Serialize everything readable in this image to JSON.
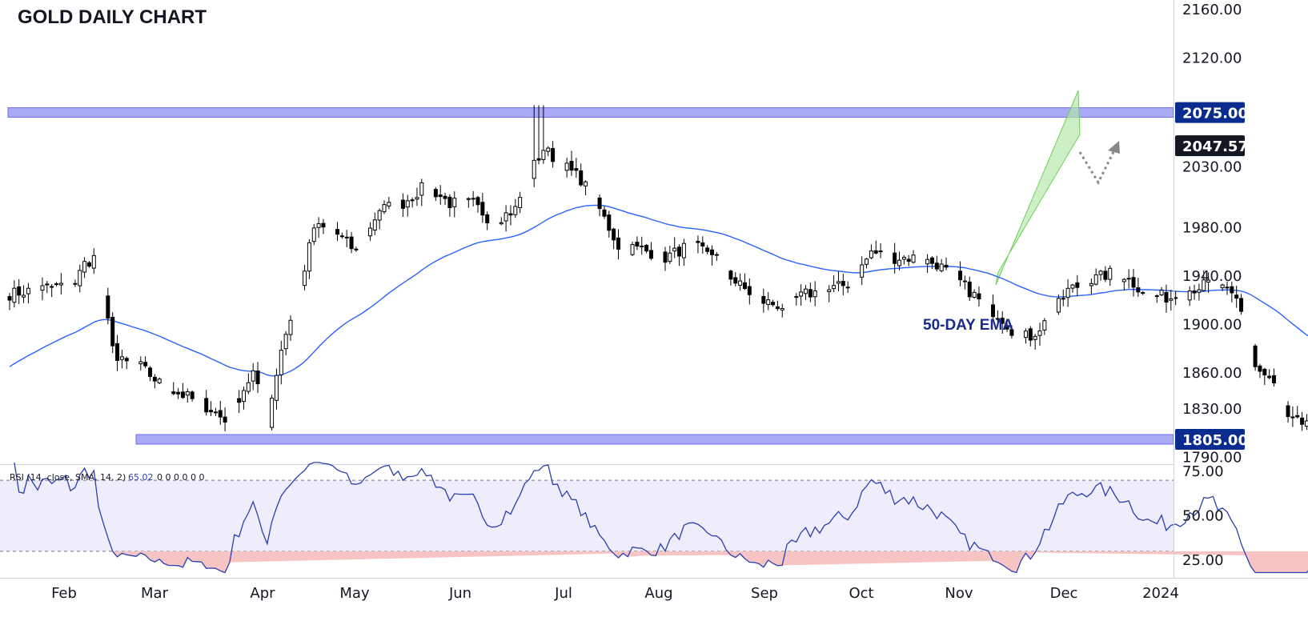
{
  "chart_data": {
    "type": "candlestick",
    "title": "GOLD DAILY CHART",
    "colors": {
      "up_candle": "#ffffff",
      "down_candle": "#000000",
      "wick": "#000000",
      "ema": "#2962ff",
      "level_band": "#8c8cf5",
      "price_label_bg": "#0b2c8f",
      "last_price_bg": "#131722",
      "channel": "#b2e6a6",
      "channel_edge": "#6fcf57",
      "rsi_line": "#2a3fae",
      "rsi_band": "#efecfb",
      "rsi_oversold_fill": "#f7c4c4",
      "projection": "#888888",
      "ema_label": "#1a2b8c"
    },
    "price_axis": {
      "ticks": [
        2160,
        2120,
        2030,
        1980,
        1940,
        1900,
        1860,
        1830,
        1790
      ],
      "tick_labels": [
        "2160.00",
        "2120.00",
        "2030.00",
        "1980.00",
        "1940.00",
        "1900.00",
        "1860.00",
        "1830.00",
        "1790.00"
      ]
    },
    "time_axis": {
      "labels": [
        "Feb",
        "Mar",
        "Apr",
        "May",
        "Jun",
        "Jul",
        "Aug",
        "Sep",
        "Oct",
        "Nov",
        "Dec",
        "2024"
      ]
    },
    "levels": [
      {
        "value": 2075,
        "label": "2075.00"
      },
      {
        "value": 1805,
        "label": "1805.00"
      }
    ],
    "last_price": {
      "value": 2047.57,
      "label": "2047.57"
    },
    "ema": {
      "label": "50-DAY EMA"
    },
    "rsi": {
      "legend": "RSI (14, close, SMA, 14, 2)",
      "legend_value": "65.02",
      "legend_zeros": "0  0  0  0  0  0",
      "upper": 70,
      "lower": 30,
      "ticks": [
        75,
        50,
        25
      ],
      "tick_labels": [
        "75.00",
        "50.00",
        "25.00"
      ]
    }
  }
}
